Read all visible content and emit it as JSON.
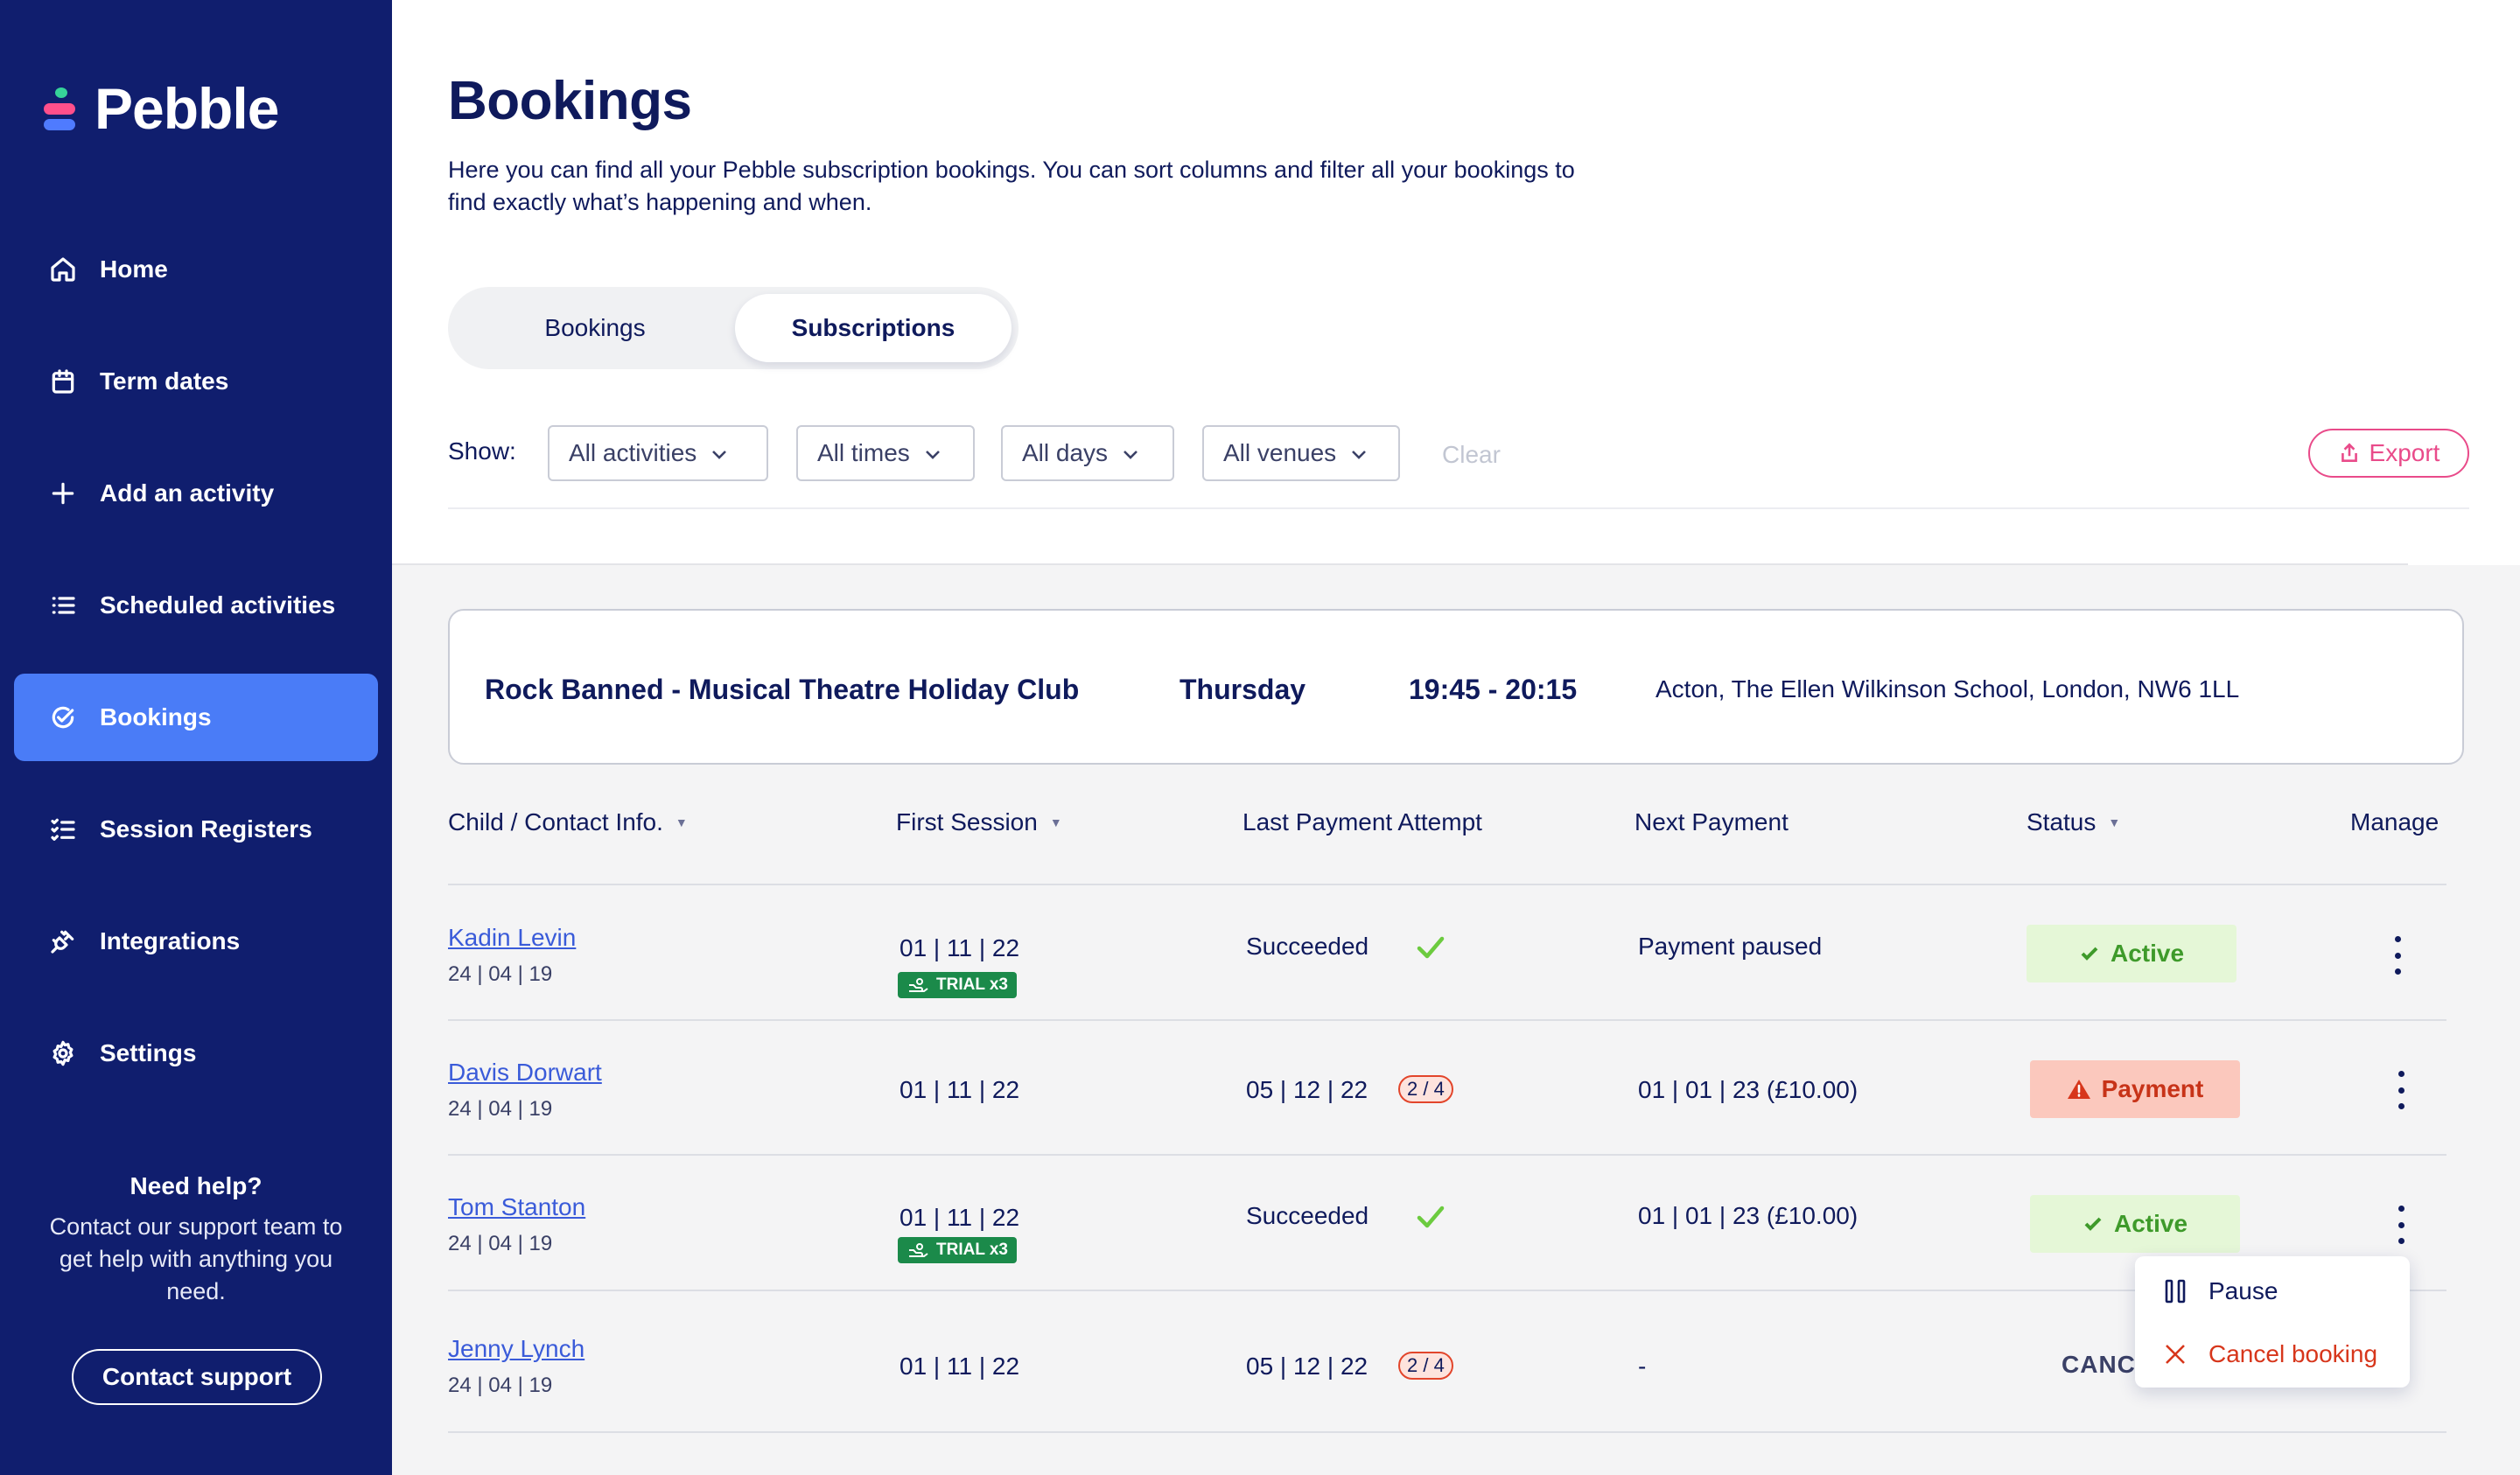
{
  "app": {
    "brand": "Pebble"
  },
  "sidebar": {
    "items": [
      {
        "label": "Home",
        "icon": "home-icon"
      },
      {
        "label": "Term dates",
        "icon": "calendar-icon"
      },
      {
        "label": "Add an activity",
        "icon": "plus-icon"
      },
      {
        "label": "Scheduled activities",
        "icon": "list-icon"
      },
      {
        "label": "Bookings",
        "icon": "check-circle-icon",
        "active": true
      },
      {
        "label": "Session Registers",
        "icon": "checklist-icon"
      },
      {
        "label": "Integrations",
        "icon": "plug-icon"
      },
      {
        "label": "Settings",
        "icon": "gear-icon"
      }
    ],
    "help": {
      "title": "Need help?",
      "text": "Contact our support team to get help with anything you need.",
      "button": "Contact support"
    }
  },
  "page": {
    "title": "Bookings",
    "description": "Here you can find all your Pebble subscription bookings. You can sort columns and filter all your bookings to find exactly what’s happening and when."
  },
  "tabs": [
    {
      "label": "Bookings",
      "selected": false
    },
    {
      "label": "Subscriptions",
      "selected": true
    }
  ],
  "filters": {
    "show_label": "Show:",
    "dropdowns": [
      "All activities",
      "All times",
      "All days",
      "All venues"
    ],
    "clear_label": "Clear",
    "export_label": "Export"
  },
  "activity": {
    "name": "Rock Banned - Musical Theatre Holiday Club",
    "day": "Thursday",
    "time": "19:45 - 20:15",
    "venue": "Acton, The Ellen Wilkinson School, London, NW6 1LL"
  },
  "table": {
    "columns": [
      "Child / Contact Info.",
      "First Session",
      "Last Payment Attempt",
      "Next Payment",
      "Status",
      "Manage"
    ],
    "rows": [
      {
        "name": "Kadin Levin",
        "dob": "24 | 04 | 19",
        "first_session": "01 | 11 | 22",
        "trial": "TRIAL x3",
        "last_payment": "Succeeded",
        "next_payment": "Payment paused",
        "status": "Active"
      },
      {
        "name": "Davis Dorwart",
        "dob": "24 | 04 | 19",
        "first_session": "01 | 11 | 22",
        "last_payment": "05 | 12 | 22",
        "attempts": "2 / 4",
        "next_payment": "01 | 01 | 23 (£10.00)",
        "status": "Payment"
      },
      {
        "name": "Tom Stanton",
        "dob": "24 | 04 | 19",
        "first_session": "01 | 11 | 22",
        "trial": "TRIAL x3",
        "last_payment": "Succeeded",
        "next_payment": "01 | 01 | 23 (£10.00)",
        "status": "Active"
      },
      {
        "name": "Jenny Lynch",
        "dob": "24 | 04 | 19",
        "first_session": "01 | 11 | 22",
        "last_payment": "05 | 12 | 22",
        "attempts": "2 / 4",
        "next_payment": "-",
        "status": "CANC"
      }
    ]
  },
  "manage_menu": {
    "pause_label": "Pause",
    "cancel_label": "Cancel booking"
  },
  "colors": {
    "sidebar_bg": "#101E6E",
    "nav_active": "#4A7CF7",
    "accent_pink": "#E94B8A",
    "active_green": "#3E9A2A",
    "payment_red": "#C73318",
    "link_blue": "#3A5BD9"
  }
}
